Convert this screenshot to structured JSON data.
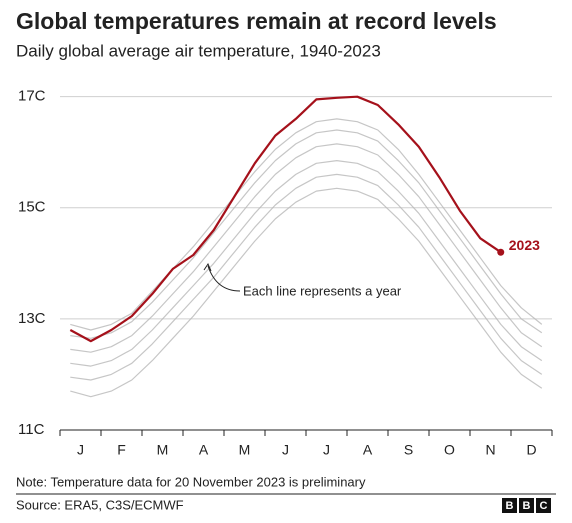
{
  "chart_data": {
    "type": "line",
    "title": "Global temperatures remain at record levels",
    "subtitle": "Daily global average air temperature, 1940-2023",
    "annotation": "Each line represents a year",
    "categories": [
      "J",
      null,
      "F",
      null,
      "M",
      null,
      "A",
      null,
      "M",
      null,
      "J",
      null,
      "J",
      null,
      "A",
      null,
      "S",
      null,
      "O",
      null,
      "N",
      null,
      "D",
      null
    ],
    "ylim": [
      11,
      17.3
    ],
    "yticks": [
      {
        "value": 11,
        "label": "11C"
      },
      {
        "value": 13,
        "label": "13C"
      },
      {
        "value": 15,
        "label": "15C"
      },
      {
        "value": 17,
        "label": "17C"
      }
    ],
    "grid": true,
    "series": [
      {
        "color": "#b8b8b8",
        "values": [
          11.7,
          11.6,
          11.7,
          11.9,
          12.25,
          12.65,
          13.05,
          13.5,
          13.95,
          14.4,
          14.8,
          15.1,
          15.3,
          15.35,
          15.3,
          15.15,
          14.8,
          14.4,
          13.9,
          13.4,
          12.9,
          12.4,
          12.0,
          11.75
        ]
      },
      {
        "color": "#b8b8b8",
        "values": [
          11.95,
          11.9,
          12.0,
          12.2,
          12.55,
          12.95,
          13.35,
          13.75,
          14.2,
          14.65,
          15.05,
          15.35,
          15.55,
          15.6,
          15.55,
          15.4,
          15.05,
          14.65,
          14.15,
          13.65,
          13.15,
          12.65,
          12.25,
          12.0
        ]
      },
      {
        "color": "#b8b8b8",
        "values": [
          12.2,
          12.15,
          12.25,
          12.45,
          12.8,
          13.2,
          13.6,
          14.0,
          14.45,
          14.9,
          15.3,
          15.6,
          15.8,
          15.85,
          15.8,
          15.65,
          15.3,
          14.9,
          14.4,
          13.9,
          13.4,
          12.9,
          12.5,
          12.25
        ]
      },
      {
        "color": "#b8b8b8",
        "values": [
          12.45,
          12.4,
          12.5,
          12.7,
          13.05,
          13.45,
          13.85,
          14.3,
          14.75,
          15.2,
          15.6,
          15.9,
          16.1,
          16.15,
          16.1,
          15.95,
          15.6,
          15.2,
          14.7,
          14.2,
          13.7,
          13.2,
          12.75,
          12.5
        ]
      },
      {
        "color": "#b8b8b8",
        "values": [
          12.7,
          12.65,
          12.75,
          12.95,
          13.3,
          13.7,
          14.1,
          14.55,
          15.0,
          15.45,
          15.85,
          16.15,
          16.35,
          16.4,
          16.35,
          16.2,
          15.85,
          15.45,
          14.95,
          14.45,
          13.95,
          13.45,
          13.0,
          12.75
        ]
      },
      {
        "color": "#b8b8b8",
        "values": [
          12.9,
          12.8,
          12.9,
          13.1,
          13.5,
          13.9,
          14.3,
          14.75,
          15.2,
          15.65,
          16.05,
          16.35,
          16.55,
          16.6,
          16.55,
          16.4,
          16.05,
          15.6,
          15.1,
          14.6,
          14.1,
          13.6,
          13.2,
          12.9
        ]
      },
      {
        "name": "2023",
        "color": "#a5111b",
        "values": [
          12.8,
          12.6,
          12.8,
          13.05,
          13.45,
          13.9,
          14.15,
          14.6,
          15.2,
          15.8,
          16.3,
          16.6,
          16.95,
          16.98,
          17.0,
          16.85,
          16.5,
          16.1,
          15.55,
          14.95,
          14.45,
          14.2,
          null,
          null
        ]
      }
    ],
    "note": "Note: Temperature data for 20 November 2023 is preliminary",
    "source": "Source: ERA5, C3S/ECMWF",
    "logo": [
      "B",
      "B",
      "C"
    ]
  }
}
